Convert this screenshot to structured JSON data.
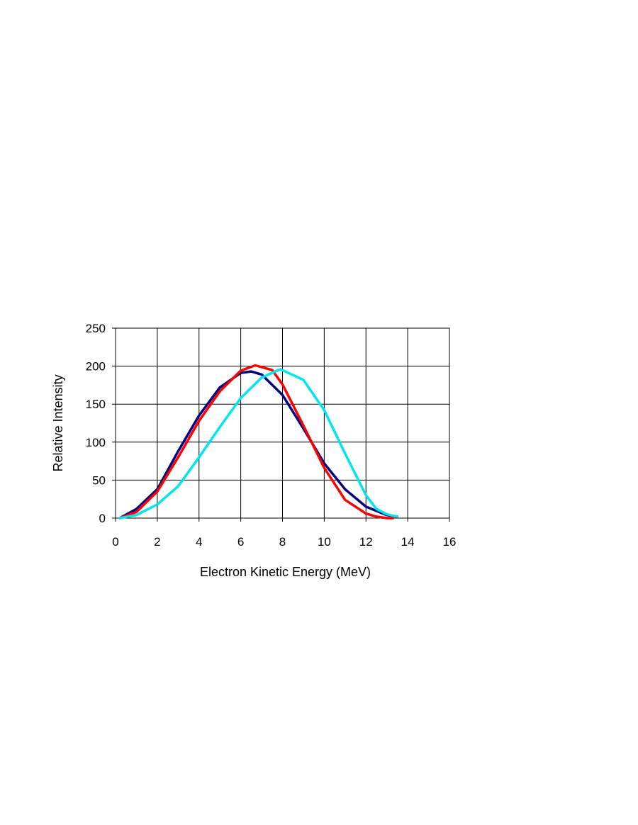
{
  "chart_data": {
    "type": "line",
    "xlabel": "Electron Kinetic Energy (MeV)",
    "ylabel": "Relative Intensity",
    "xlim": [
      0,
      16
    ],
    "ylim": [
      0,
      250
    ],
    "xticks": [
      "0",
      "2",
      "4",
      "6",
      "8",
      "10",
      "12",
      "14",
      "16"
    ],
    "yticks": [
      "0",
      "50",
      "100",
      "150",
      "200",
      "250"
    ],
    "grid": true,
    "legend": "none",
    "series": [
      {
        "color": "#000080",
        "x": [
          0.2,
          1,
          2,
          3,
          4,
          5,
          6,
          6.5,
          7,
          8,
          9,
          10,
          11,
          12,
          13,
          13.5
        ],
        "y": [
          0,
          12,
          38,
          88,
          135,
          172,
          191,
          193,
          189,
          162,
          118,
          72,
          38,
          15,
          4,
          2
        ]
      },
      {
        "color": "#ff0000",
        "x": [
          0.2,
          1,
          2,
          3,
          4,
          5,
          6,
          6.7,
          7.5,
          8,
          9,
          10,
          11,
          12,
          12.5,
          13,
          13.3
        ],
        "y": [
          0,
          8,
          35,
          80,
          128,
          167,
          194,
          201,
          195,
          176,
          122,
          66,
          24,
          6,
          2,
          0,
          0
        ]
      },
      {
        "color": "#00e5ee",
        "x": [
          0.2,
          1,
          2,
          3,
          4,
          5,
          6,
          7,
          7.9,
          9,
          10,
          11,
          12,
          12.5,
          13,
          13.5
        ],
        "y": [
          0,
          4,
          18,
          42,
          80,
          120,
          158,
          185,
          196,
          182,
          142,
          85,
          30,
          12,
          5,
          2
        ]
      }
    ]
  }
}
